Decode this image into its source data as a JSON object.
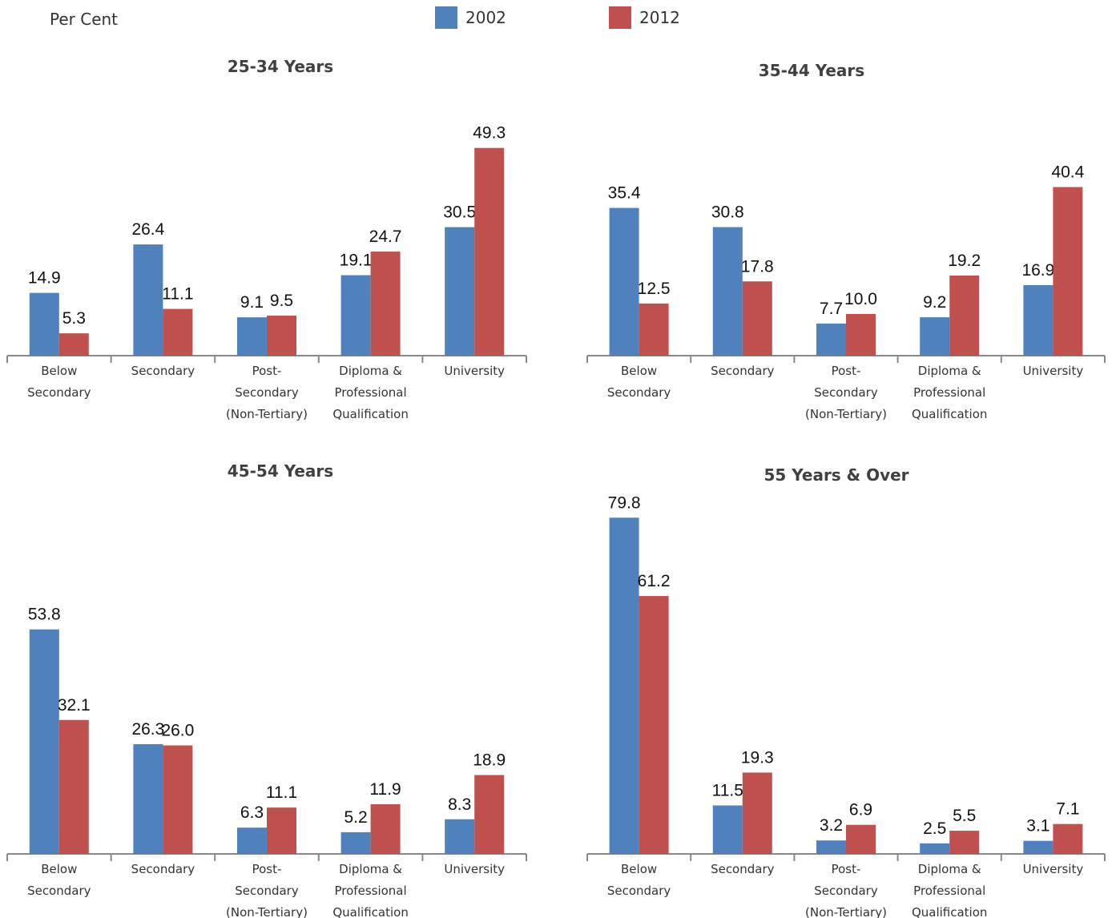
{
  "y_axis_label": "Per Cent",
  "legend": [
    {
      "label": "2002",
      "color": "#4F81BD"
    },
    {
      "label": "2012",
      "color": "#C0504D"
    }
  ],
  "chart_data": [
    {
      "type": "bar",
      "title": "25-34 Years",
      "categories": [
        [
          "Below",
          "Secondary"
        ],
        [
          "Secondary"
        ],
        [
          "Post-",
          "Secondary",
          "(Non-Tertiary)"
        ],
        [
          "Diploma &",
          "Professional",
          "Qualification"
        ],
        [
          "University"
        ]
      ],
      "series": [
        {
          "name": "2002",
          "values": [
            14.9,
            26.4,
            9.1,
            19.1,
            30.5
          ]
        },
        {
          "name": "2012",
          "values": [
            5.3,
            11.1,
            9.5,
            24.7,
            49.3
          ]
        }
      ]
    },
    {
      "type": "bar",
      "title": "35-44 Years",
      "categories": [
        [
          "Below",
          "Secondary"
        ],
        [
          "Secondary"
        ],
        [
          "Post-",
          "Secondary",
          "(Non-Tertiary)"
        ],
        [
          "Diploma &",
          "Professional",
          "Qualification"
        ],
        [
          "University"
        ]
      ],
      "series": [
        {
          "name": "2002",
          "values": [
            35.4,
            30.8,
            7.7,
            9.2,
            16.9
          ]
        },
        {
          "name": "2012",
          "values": [
            12.5,
            17.8,
            10.0,
            19.2,
            40.4
          ]
        }
      ]
    },
    {
      "type": "bar",
      "title": "45-54 Years",
      "categories": [
        [
          "Below",
          "Secondary"
        ],
        [
          "Secondary"
        ],
        [
          "Post-",
          "Secondary",
          "(Non-Tertiary)"
        ],
        [
          "Diploma &",
          "Professional",
          "Qualification"
        ],
        [
          "University"
        ]
      ],
      "series": [
        {
          "name": "2002",
          "values": [
            53.8,
            26.3,
            6.3,
            5.2,
            8.3
          ]
        },
        {
          "name": "2012",
          "values": [
            32.1,
            26.0,
            11.1,
            11.9,
            18.9
          ]
        }
      ]
    },
    {
      "type": "bar",
      "title": "55 Years & Over",
      "categories": [
        [
          "Below",
          "Secondary"
        ],
        [
          "Secondary"
        ],
        [
          "Post-",
          "Secondary",
          "(Non-Tertiary)"
        ],
        [
          "Diploma &",
          "Professional",
          "Qualification"
        ],
        [
          "University"
        ]
      ],
      "series": [
        {
          "name": "2002",
          "values": [
            79.8,
            11.5,
            3.2,
            2.5,
            3.1
          ]
        },
        {
          "name": "2012",
          "values": [
            61.2,
            19.3,
            6.9,
            5.5,
            7.1
          ]
        }
      ]
    }
  ]
}
